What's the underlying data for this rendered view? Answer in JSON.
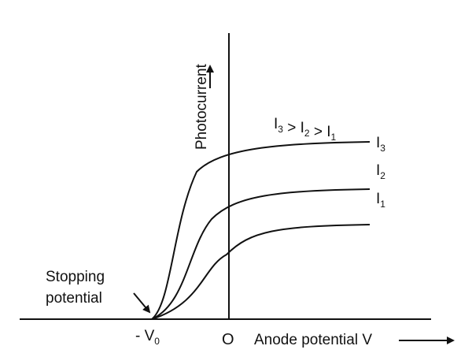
{
  "chart_data": {
    "type": "line",
    "x_axis": {
      "label": "Anode potential V",
      "origin_label": "O",
      "stopping_label_main": "- V",
      "stopping_label_sub": "0"
    },
    "y_axis": {
      "label": "Photocurrent"
    },
    "annotation": {
      "line1": "Stopping",
      "line2": "potential"
    },
    "relation": [
      {
        "main": "I",
        "sub": "3"
      },
      {
        "main": " > I",
        "sub": "2"
      },
      {
        "main": " > I",
        "sub": "1"
      }
    ],
    "series": [
      {
        "main": "I",
        "sub": "3",
        "saturation": 3,
        "shift": 0
      },
      {
        "main": "I",
        "sub": "2",
        "saturation": 2.2,
        "shift": 1
      },
      {
        "main": "I",
        "sub": "1",
        "saturation": 1.6,
        "shift": 2
      }
    ]
  }
}
